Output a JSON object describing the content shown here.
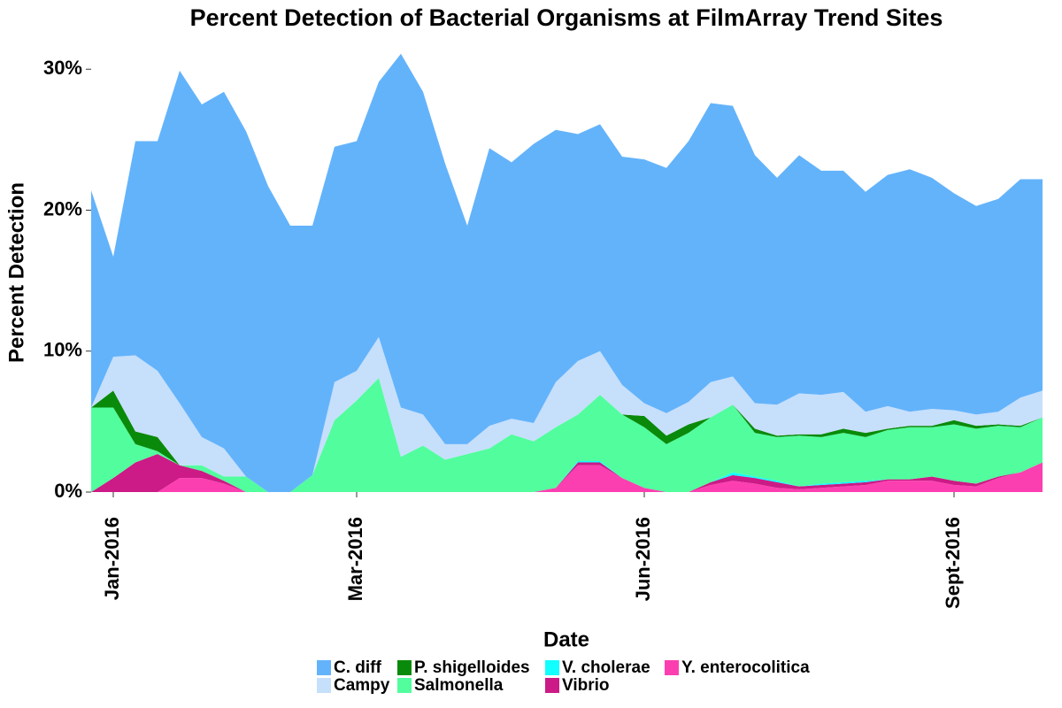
{
  "chart_data": {
    "type": "stacked_area",
    "title": "Percent Detection of Bacterial Organisms at FilmArray Trend Sites",
    "x_label": "Date",
    "y_label": "Percent Detection",
    "categories": [
      null,
      "Jan-2016",
      null,
      null,
      null,
      null,
      null,
      null,
      null,
      null,
      null,
      null,
      "Mar-2016",
      null,
      null,
      null,
      null,
      null,
      null,
      null,
      null,
      null,
      null,
      null,
      null,
      "Jun-2016",
      null,
      null,
      null,
      null,
      null,
      null,
      null,
      null,
      null,
      null,
      null,
      null,
      null,
      "Sept-2016",
      null,
      null,
      null,
      null
    ],
    "ylim": [
      0,
      32.4
    ],
    "yticks": [
      {
        "value": 0,
        "label": "0%"
      },
      {
        "value": 10,
        "label": "10%"
      },
      {
        "value": 20,
        "label": "20%"
      },
      {
        "value": 30,
        "label": "30%"
      }
    ],
    "grid": false,
    "series": [
      {
        "name": "C. diff",
        "color": "#63b3fb",
        "values": [
          15.4,
          7.1,
          15.2,
          16.3,
          23.6,
          23.6,
          25.3,
          24.5,
          21.7,
          18.9,
          17.7,
          16.7,
          16.3,
          18.1,
          25.1,
          22.9,
          19.9,
          15.5,
          19.7,
          18.2,
          19.8,
          17.9,
          16.1,
          16.1,
          16.2,
          17.3,
          17.4,
          18.5,
          19.8,
          19.2,
          17.6,
          16.1,
          16.9,
          15.9,
          15.7,
          15.6,
          16.4,
          17.2,
          16.4,
          15.4,
          14.8,
          15.1,
          15.5,
          15.0
        ]
      },
      {
        "name": "Campy",
        "color": "#c6dffb",
        "values": [
          0,
          2.4,
          5.4,
          4.7,
          4.4,
          2.0,
          2.0,
          0,
          0,
          0,
          0,
          2.7,
          2.1,
          2.9,
          3.5,
          2.2,
          1.1,
          0.7,
          1.6,
          1.1,
          1.3,
          3.2,
          3.8,
          3.1,
          2.1,
          0.9,
          1.6,
          1.6,
          2.5,
          2.0,
          1.8,
          2.2,
          2.9,
          2.8,
          2.6,
          1.5,
          1.6,
          1.0,
          1.2,
          0.7,
          0.8,
          0.9,
          2.0,
          1.9
        ]
      },
      {
        "name": "P. shigelloides",
        "color": "#0a8a0a",
        "values": [
          0,
          1.2,
          0.9,
          1.0,
          0,
          0,
          0,
          0,
          0,
          0,
          0,
          0,
          0,
          0,
          0,
          0,
          0,
          0,
          0,
          0,
          0,
          0,
          0,
          0,
          0,
          0.8,
          0.6,
          0.6,
          0,
          0,
          0.3,
          0.1,
          0.1,
          0.2,
          0.3,
          0.3,
          0.1,
          0.1,
          0.1,
          0.3,
          0.2,
          0.1,
          0.1,
          0
        ]
      },
      {
        "name": "Salmonella",
        "color": "#52fd9e",
        "values": [
          6.0,
          5.0,
          1.3,
          0.2,
          0,
          0.4,
          0.3,
          1.1,
          0,
          0,
          1.2,
          5.1,
          6.5,
          8.1,
          2.5,
          3.3,
          2.3,
          2.7,
          3.1,
          4.1,
          3.6,
          4.3,
          3.3,
          4.7,
          4.5,
          4.3,
          3.4,
          4.2,
          4.6,
          4.8,
          3.1,
          3.1,
          3.6,
          3.3,
          3.5,
          3.1,
          3.5,
          3.7,
          3.5,
          4.0,
          3.9,
          3.6,
          3.2,
          3.2
        ]
      },
      {
        "name": "V. cholerae",
        "color": "#12ffff",
        "values": [
          0,
          0,
          0,
          0,
          0,
          0,
          0,
          0,
          0,
          0,
          0,
          0,
          0,
          0,
          0,
          0,
          0,
          0,
          0,
          0,
          0,
          0,
          0.1,
          0.1,
          0,
          0,
          0,
          0,
          0,
          0.2,
          0.1,
          0.1,
          0,
          0.1,
          0.1,
          0.1,
          0,
          0,
          0,
          0,
          0,
          0,
          0,
          0
        ]
      },
      {
        "name": "Vibrio",
        "color": "#cc1a86",
        "values": [
          0,
          1.0,
          2.1,
          2.7,
          0.9,
          0.5,
          0.2,
          0,
          0,
          0,
          0,
          0,
          0,
          0,
          0,
          0,
          0,
          0,
          0,
          0,
          0,
          0,
          0.2,
          0.2,
          0,
          0,
          0,
          0,
          0.2,
          0.4,
          0.4,
          0.4,
          0.2,
          0.2,
          0.2,
          0.2,
          0.1,
          0.1,
          0.3,
          0.3,
          0.2,
          0.1,
          0,
          0
        ]
      },
      {
        "name": "Y. enterocolitica",
        "color": "#fc3fb0",
        "values": [
          0,
          0,
          0,
          0,
          1.0,
          1.0,
          0.6,
          0,
          0,
          0,
          0,
          0,
          0,
          0,
          0,
          0,
          0,
          0,
          0,
          0,
          0,
          0.3,
          1.9,
          1.9,
          1.0,
          0.3,
          0,
          0,
          0.5,
          0.8,
          0.6,
          0.3,
          0.2,
          0.3,
          0.4,
          0.5,
          0.8,
          0.8,
          0.8,
          0.5,
          0.4,
          1.0,
          1.4,
          2.1
        ]
      }
    ]
  }
}
